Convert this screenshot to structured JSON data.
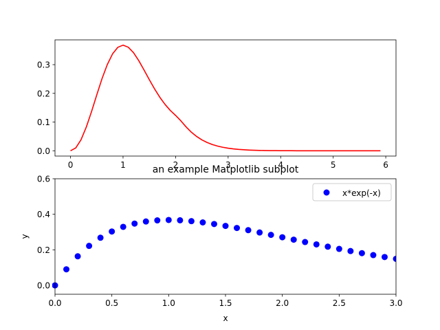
{
  "chart_data": [
    {
      "type": "line",
      "title": "",
      "xlabel": "",
      "ylabel": "",
      "xlim": [
        -0.295,
        6.195
      ],
      "ylim": [
        -0.0184,
        0.3863
      ],
      "xticks": [
        "0",
        "1",
        "2",
        "3",
        "4",
        "5",
        "6"
      ],
      "yticks": [
        "0.0",
        "0.1",
        "0.2",
        "0.3"
      ],
      "grid": false,
      "series": [
        {
          "color": "#ff0000",
          "x": [
            0,
            0.1,
            0.2,
            0.3,
            0.4,
            0.5,
            0.6,
            0.7,
            0.8,
            0.9,
            1.0,
            1.1,
            1.2,
            1.3,
            1.4,
            1.5,
            1.6,
            1.7,
            1.8,
            1.9,
            2.0,
            2.1,
            2.2,
            2.3,
            2.4,
            2.5,
            2.6,
            2.7,
            2.8,
            2.9,
            3.0,
            3.1,
            3.2,
            3.3,
            3.4,
            3.5,
            3.6,
            3.7,
            3.8,
            3.9,
            4.0,
            4.1,
            4.2,
            4.3,
            4.4,
            4.5,
            4.6,
            4.7,
            4.8,
            4.9,
            5.0,
            5.1,
            5.2,
            5.3,
            5.4,
            5.5,
            5.6,
            5.7,
            5.8,
            5.9
          ],
          "y": [
            0.0,
            0.0099,
            0.0384,
            0.0822,
            0.1363,
            0.1947,
            0.2513,
            0.3001,
            0.3374,
            0.3604,
            0.3679,
            0.3607,
            0.3415,
            0.3137,
            0.2812,
            0.2476,
            0.2155,
            0.1864,
            0.1613,
            0.1404,
            0.1232,
            0.1044,
            0.0832,
            0.0648,
            0.0499,
            0.0381,
            0.0289,
            0.0218,
            0.0163,
            0.0121,
            0.0089,
            0.0066,
            0.0048,
            0.0035,
            0.0025,
            0.0018,
            0.0013,
            0.0009,
            0.0007,
            0.0005,
            0.0003,
            0.0002,
            0.0002,
            0.0001,
            0.0001,
            0.0001,
            0,
            0,
            0,
            0,
            0,
            0,
            0,
            0,
            0,
            0,
            0,
            0,
            0,
            0
          ]
        }
      ]
    },
    {
      "type": "scatter",
      "title": "an example Matplotlib subplot",
      "xlabel": "x",
      "ylabel": "y",
      "xlim": [
        0,
        3
      ],
      "ylim": [
        -0.05,
        0.6
      ],
      "xticks": [
        "0.0",
        "0.5",
        "1.0",
        "1.5",
        "2.0",
        "2.5",
        "3.0"
      ],
      "yticks": [
        "0.0",
        "0.2",
        "0.4",
        "0.6"
      ],
      "grid": false,
      "legend": "top-right",
      "series": [
        {
          "name": "x*exp(-x)",
          "color": "#0000ff",
          "x": [
            0.0,
            0.1,
            0.2,
            0.3,
            0.4,
            0.5,
            0.6,
            0.7,
            0.8,
            0.9,
            1.0,
            1.1,
            1.2,
            1.3,
            1.4,
            1.5,
            1.6,
            1.7,
            1.8,
            1.9,
            2.0,
            2.1,
            2.2,
            2.3,
            2.4,
            2.5,
            2.6,
            2.7,
            2.8,
            2.9,
            3.0
          ],
          "y": [
            0.0,
            0.0905,
            0.1637,
            0.2222,
            0.2681,
            0.3033,
            0.3293,
            0.3476,
            0.3595,
            0.3659,
            0.3679,
            0.3662,
            0.3614,
            0.3543,
            0.3452,
            0.3347,
            0.323,
            0.3106,
            0.2975,
            0.2842,
            0.2707,
            0.2572,
            0.2438,
            0.2306,
            0.2177,
            0.2052,
            0.1931,
            0.1814,
            0.1703,
            0.1596,
            0.1494
          ]
        }
      ]
    }
  ]
}
